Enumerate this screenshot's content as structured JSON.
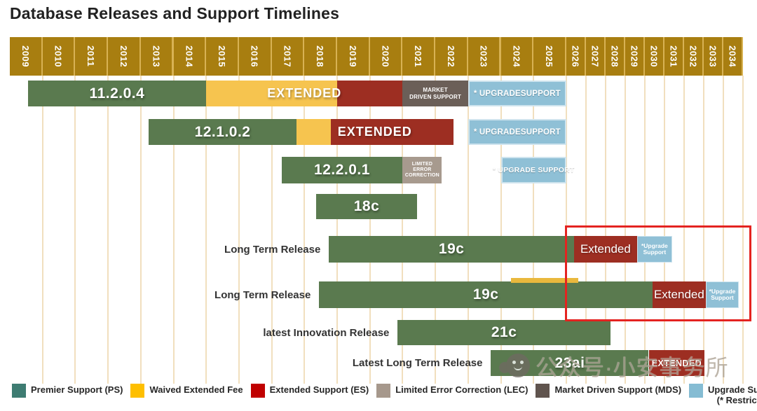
{
  "title": "Database Releases and Support Timelines",
  "watermark": {
    "icon": "wechat-official-account",
    "text": "公众号·小安事务所"
  },
  "colors": {
    "header_band": "#a87e10",
    "header_separator": "#d8b254",
    "grid_line": "#f1dfbe",
    "premier": "#5a7a4f",
    "waived": "#f6c44f",
    "extended": "#9d2e22",
    "mds": "#6b5f58",
    "lec": "#a79a8e",
    "upgrade": "#8fc0d6",
    "highlight": "#e42320",
    "legend_premier": "#3e7c72",
    "legend_waived": "#febf00",
    "legend_extended": "#c00000",
    "legend_lec": "#a6988c",
    "legend_mds": "#60544e",
    "legend_upgrade": "#85bcd3"
  },
  "chart_data": {
    "type": "gantt-timeline",
    "title": "Database Releases and Support Timelines",
    "x_axis": {
      "wide_years": [
        2009,
        2010,
        2011,
        2012,
        2013,
        2014,
        2015,
        2016,
        2017,
        2018,
        2019,
        2020,
        2021,
        2022,
        2023,
        2024,
        2025
      ],
      "narrow_years": [
        2026,
        2027,
        2028,
        2029,
        2030,
        2031,
        2032,
        2033,
        2034
      ],
      "note": "year columns from 2026 onward are drawn at reduced width"
    },
    "rows": [
      {
        "row_label": "",
        "segments": [
          {
            "kind": "premier",
            "text": "11.2.0.4",
            "from": 2009.55,
            "to": 2015.0
          },
          {
            "kind": "waived",
            "text": "",
            "from": 2015.0,
            "to": 2019.0
          },
          {
            "kind": "extended",
            "text": "",
            "from": 2019.0,
            "to": 2021.0
          },
          {
            "kind": "mds",
            "lines": [
              "MARKET",
              "DRIVEN SUPPORT"
            ],
            "from": 2021.0,
            "to": 2023.0
          },
          {
            "kind": "upgrade",
            "text": "* UPGRADESUPPORT",
            "from": 2023.0,
            "to": 2026.0
          }
        ],
        "overlay": {
          "text": "EXTENDED",
          "from": 2015.0,
          "to": 2021.0
        }
      },
      {
        "row_label": "",
        "segments": [
          {
            "kind": "premier",
            "text": "12.1.0.2",
            "from": 2013.25,
            "to": 2017.75
          },
          {
            "kind": "waived",
            "text": "",
            "from": 2017.75,
            "to": 2018.8
          },
          {
            "kind": "extended",
            "text": "",
            "from": 2018.8,
            "to": 2022.55
          },
          {
            "kind": "upgrade",
            "text": "* UPGRADESUPPORT",
            "from": 2023.0,
            "to": 2026.0
          }
        ],
        "overlay": {
          "text": "EXTENDED",
          "from": 2017.75,
          "to": 2022.55
        }
      },
      {
        "row_label": "",
        "segments": [
          {
            "kind": "premier",
            "text": "12.2.0.1",
            "from": 2017.3,
            "to": 2021.0
          },
          {
            "kind": "lec",
            "lines": [
              "LIMITED ERROR",
              "CORRECTION"
            ],
            "from": 2021.0,
            "to": 2022.2
          },
          {
            "kind": "upgrade",
            "text": "* UPGRADE SUPPORT",
            "variant": "sm",
            "from": 2024.0,
            "to": 2026.0
          }
        ]
      },
      {
        "row_label": "",
        "segments": [
          {
            "kind": "premier",
            "text": "18c",
            "from": 2018.35,
            "to": 2021.45
          }
        ]
      },
      {
        "row_label": "Long Term Release",
        "segments": [
          {
            "kind": "premier",
            "text": "19c",
            "from": 2018.75,
            "to": 2026.4
          },
          {
            "kind": "extended",
            "text": "Extended",
            "variant": "title",
            "from": 2026.4,
            "to": 2029.6
          },
          {
            "kind": "upgrade-small",
            "lines": [
              "*Upgrade",
              "Support"
            ],
            "from": 2029.6,
            "to": 2031.4
          }
        ]
      },
      {
        "row_label": "Long Term Release",
        "segments": [
          {
            "kind": "premier",
            "text": "19c",
            "from": 2018.45,
            "to": 2030.4
          },
          {
            "kind": "waived-strip",
            "text": "",
            "from": 2024.3,
            "to": 2026.6
          },
          {
            "kind": "extended",
            "text": "Extended",
            "variant": "title",
            "from": 2030.4,
            "to": 2033.1
          },
          {
            "kind": "upgrade-small",
            "lines": [
              "*Upgrade",
              "Support"
            ],
            "from": 2033.1,
            "to": 2034.8
          }
        ]
      },
      {
        "row_label": "latest Innovation Release",
        "segments": [
          {
            "kind": "premier",
            "text": "21c",
            "from": 2020.85,
            "to": 2028.25
          }
        ]
      },
      {
        "row_label": "Latest Long Term Release",
        "segments": [
          {
            "kind": "premier",
            "text": "23ai",
            "from": 2023.7,
            "to": 2030.2
          },
          {
            "kind": "extended",
            "text": "EXTENDED",
            "variant": "caps",
            "from": 2030.2,
            "to": 2033.05
          }
        ]
      }
    ],
    "legend": [
      {
        "key": "legend_premier",
        "label": "Premier Support (PS)"
      },
      {
        "key": "legend_waived",
        "label": "Waived Extended Fee"
      },
      {
        "key": "legend_extended",
        "label": "Extended Support (ES)"
      },
      {
        "key": "legend_lec",
        "label": "Limited Error Correction (LEC)"
      },
      {
        "key": "legend_mds",
        "label": "Market Driven Support (MDS)"
      },
      {
        "key": "legend_upgrade",
        "label": "Upgrade Support",
        "label2": "(* Restricted)"
      }
    ],
    "highlight_box": {
      "description": "red outline highlighting the 2026-and-later Extended / Upgrade Support periods of both 19c rows",
      "from_year": 2026,
      "to_year": 2035
    }
  }
}
